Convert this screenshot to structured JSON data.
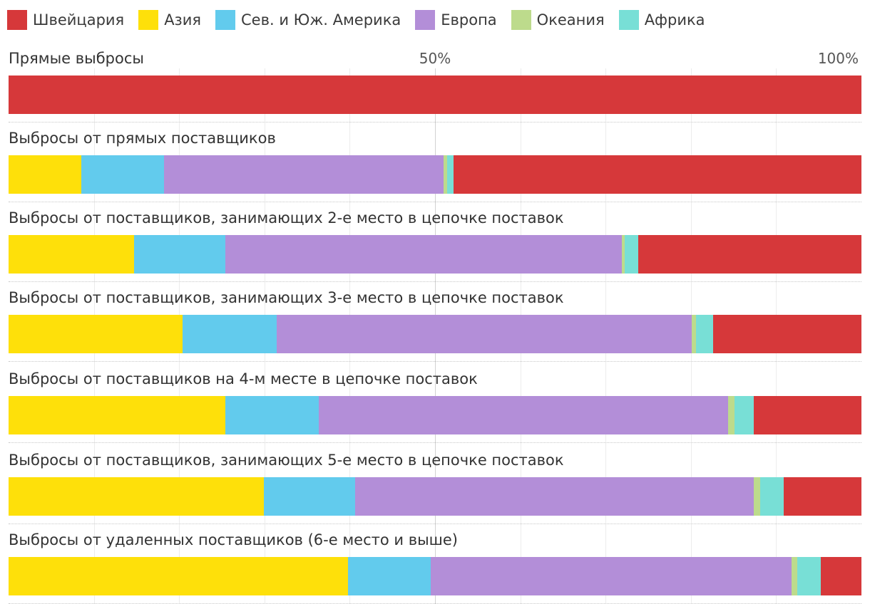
{
  "chart_data": {
    "type": "bar",
    "horizontal": true,
    "stacked": true,
    "normalized": true,
    "xlim": [
      0,
      100
    ],
    "grid": true,
    "grid_step": 10,
    "legend": "top-left",
    "ticks": [
      {
        "value": 50,
        "label": "50%"
      },
      {
        "value": 100,
        "label": "100%"
      }
    ],
    "categories": [
      "Прямые выбросы",
      "Выбросы от прямых поставщиков",
      "Выбросы от поставщиков, занимающих 2-е место в цепочке поставок",
      "Выбросы от поставщиков, занимающих 3-е место в цепочке поставок",
      "Выбросы от поставщиков на 4-м месте в цепочке поставок",
      "Выбросы от поставщиков, занимающих 5-е место в цепочке поставок",
      "Выбросы от удаленных поставщиков (6-е место и выше)"
    ],
    "stack_order": [
      1,
      2,
      3,
      4,
      5,
      0
    ],
    "series": [
      {
        "name": "Швейцария",
        "color": "#d6383a",
        "values": [
          100,
          47.8,
          26.2,
          17.4,
          12.6,
          9.1,
          4.8
        ]
      },
      {
        "name": "Азия",
        "color": "#fee00a",
        "values": [
          0,
          8.5,
          14.7,
          20.4,
          25.4,
          29.9,
          39.8
        ]
      },
      {
        "name": "Сев. и Юж. Америка",
        "color": "#62cbed",
        "values": [
          0,
          9.7,
          10.7,
          11.0,
          11.0,
          10.7,
          9.7
        ]
      },
      {
        "name": "Европа",
        "color": "#b38ed8",
        "values": [
          0,
          32.8,
          46.5,
          48.7,
          48.0,
          46.8,
          42.3
        ]
      },
      {
        "name": "Океания",
        "color": "#bddb8c",
        "values": [
          0,
          0.4,
          0.3,
          0.5,
          0.7,
          0.7,
          0.7
        ]
      },
      {
        "name": "Африка",
        "color": "#78dfd6",
        "values": [
          0,
          0.8,
          1.6,
          2.0,
          2.3,
          2.8,
          2.7
        ]
      }
    ]
  }
}
